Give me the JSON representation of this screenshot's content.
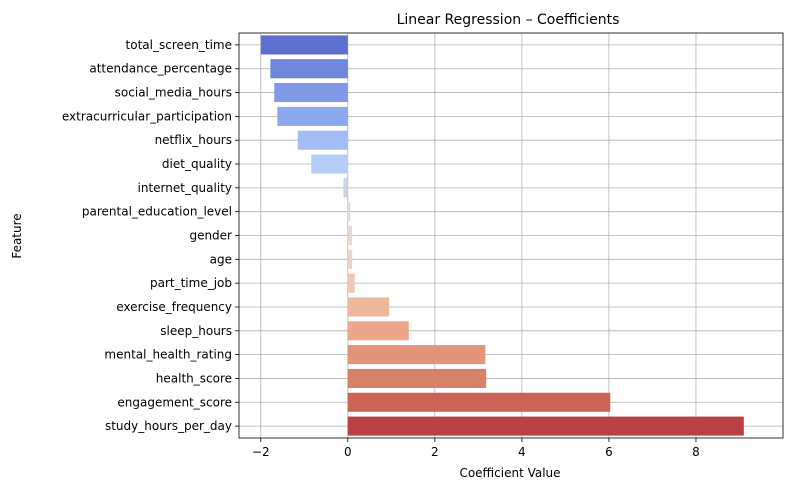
{
  "chart_data": {
    "type": "bar",
    "orientation": "horizontal",
    "title": "Linear Regression – Coefficients",
    "xlabel": "Coefficient Value",
    "ylabel": "Feature",
    "xlim": [
      -2.5,
      10.0
    ],
    "xticks": [
      -2,
      0,
      2,
      4,
      6,
      8
    ],
    "grid": true,
    "categories": [
      "total_screen_time",
      "attendance_percentage",
      "social_media_hours",
      "extracurricular_participation",
      "netflix_hours",
      "diet_quality",
      "internet_quality",
      "parental_education_level",
      "gender",
      "age",
      "part_time_job",
      "exercise_frequency",
      "sleep_hours",
      "mental_health_rating",
      "health_score",
      "engagement_score",
      "study_hours_per_day"
    ],
    "values": [
      -2.0,
      -1.78,
      -1.69,
      -1.62,
      -1.15,
      -0.84,
      -0.1,
      0.06,
      0.1,
      0.1,
      0.16,
      0.95,
      1.4,
      3.16,
      3.18,
      6.03,
      9.1
    ],
    "colors": [
      "#5e70cf",
      "#6e86dc",
      "#7f99e6",
      "#8ca9ee",
      "#a2bdf6",
      "#b5cdf9",
      "#c8d4ea",
      "#d9dde4",
      "#e4dad5",
      "#ead3c8",
      "#f0c6b0",
      "#eeb89c",
      "#eda78a",
      "#e29478",
      "#d98068",
      "#cc6456",
      "#bb4044"
    ]
  }
}
